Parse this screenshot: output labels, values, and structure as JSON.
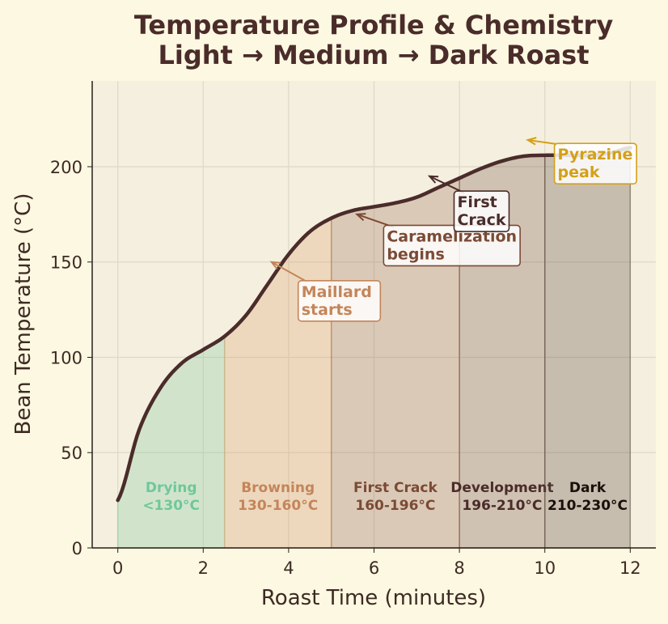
{
  "chart_data": {
    "type": "line",
    "title": "Temperature Profile & Chemistry",
    "subtitle": "Light → Medium → Dark Roast",
    "xlabel": "Roast Time (minutes)",
    "ylabel": "Bean Temperature (°C)",
    "xlim": [
      -0.6,
      12.6
    ],
    "ylim": [
      0,
      245
    ],
    "xticks": [
      0,
      2,
      4,
      6,
      8,
      10,
      12
    ],
    "yticks": [
      0,
      50,
      100,
      150,
      200
    ],
    "grid": true,
    "series": [
      {
        "x": [
          0,
          0.5,
          1,
          1.5,
          2,
          2.5,
          3,
          3.5,
          4,
          4.5,
          5,
          5.5,
          6,
          6.5,
          7,
          7.5,
          8,
          8.5,
          9,
          9.5,
          10,
          10.5,
          11,
          11.5,
          12
        ],
        "y": [
          25,
          62,
          84,
          97,
          104,
          111,
          122,
          138,
          154,
          166,
          173,
          177,
          179,
          181,
          184,
          189,
          194,
          199,
          203,
          205.5,
          206,
          206,
          206,
          207,
          210
        ],
        "color": "#4a2c2a"
      }
    ],
    "phases": [
      {
        "name": "Drying",
        "range": "<130°C",
        "x": [
          0,
          2.5
        ],
        "color": "#7fc99a",
        "label_color": "#6fc79a"
      },
      {
        "name": "Browning",
        "range": "130-160°C",
        "x": [
          2.5,
          5
        ],
        "color": "#d9a36e",
        "label_color": "#c4855a"
      },
      {
        "name": "First Crack",
        "range": "160-196°C",
        "x": [
          5,
          8
        ],
        "color": "#a07058",
        "label_color": "#7b4a35"
      },
      {
        "name": "Development",
        "range": "196-210°C",
        "x": [
          8,
          10
        ],
        "color": "#7a5a4a",
        "label_color": "#4a2c2a"
      },
      {
        "name": "Dark",
        "range": "210-230°C",
        "x": [
          10,
          12
        ],
        "color": "#5a4a40",
        "label_color": "#1a0f0a"
      }
    ],
    "annotations": [
      {
        "lines": [
          "Maillard",
          "starts"
        ],
        "xy": [
          3.6,
          150
        ],
        "xytext": [
          4.3,
          133
        ],
        "color": "#c4855a"
      },
      {
        "lines": [
          "Caramelization",
          "begins"
        ],
        "xy": [
          5.6,
          175
        ],
        "xytext": [
          6.3,
          162
        ],
        "color": "#7b4a35"
      },
      {
        "lines": [
          "First",
          "Crack"
        ],
        "xy": [
          7.3,
          195
        ],
        "xytext": [
          7.95,
          180
        ],
        "color": "#4a2c2a"
      },
      {
        "lines": [
          "Pyrazine",
          "peak"
        ],
        "xy": [
          9.6,
          214
        ],
        "xytext": [
          10.3,
          205
        ],
        "color": "#d4a017"
      }
    ]
  }
}
